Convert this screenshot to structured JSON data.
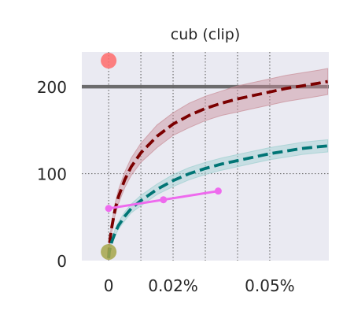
{
  "chart_data": {
    "type": "line",
    "title": "cub (clip)",
    "xlabel": "",
    "ylabel": "",
    "xlim": [
      -8.33e-05,
      0.0006833
    ],
    "ylim": [
      0,
      240
    ],
    "x_ticks": [
      {
        "value": 0,
        "label": "0"
      },
      {
        "value": 0.0002,
        "label": "0.02%"
      },
      {
        "value": 0.0005,
        "label": "0.05%"
      }
    ],
    "x_grid": [
      0,
      0.0001,
      0.0002,
      0.0003,
      0.0004,
      0.0005
    ],
    "y_ticks": [
      {
        "value": 0,
        "label": "0"
      },
      {
        "value": 100,
        "label": "100"
      },
      {
        "value": 200,
        "label": "200"
      }
    ],
    "y_grid": [
      100
    ],
    "grid": true,
    "legend": "none",
    "reference_line": {
      "y": 200,
      "color": "#5f5f5f"
    },
    "series": [
      {
        "style": "dashed",
        "color": "#7b0000",
        "band_color": "#c98f98",
        "x": [
          0,
          2e-06,
          5e-06,
          1e-05,
          2e-05,
          3e-05,
          5e-05,
          7e-05,
          0.0001,
          0.00015,
          0.0002,
          0.00025,
          0.0003,
          0.00035,
          0.0004,
          0.00045,
          0.0005,
          0.00055,
          0.0006,
          0.00065,
          0.00068
        ],
        "y": [
          3,
          16,
          27,
          39,
          59,
          73,
          93,
          108,
          124,
          143,
          157,
          167,
          175,
          181,
          186,
          190,
          194,
          198,
          201,
          204,
          206
        ],
        "band": [
          2,
          3,
          4,
          5,
          7,
          8,
          9,
          10,
          11,
          13,
          13,
          14,
          14,
          14,
          15,
          15,
          15,
          15,
          15,
          15,
          15
        ]
      },
      {
        "style": "dashed",
        "color": "#007575",
        "band_color": "#9ed0d0",
        "x": [
          0,
          2e-06,
          5e-06,
          1e-05,
          2e-05,
          3e-05,
          5e-05,
          7e-05,
          0.0001,
          0.00015,
          0.0002,
          0.00025,
          0.0003,
          0.00035,
          0.0004,
          0.00045,
          0.0005,
          0.00055,
          0.0006,
          0.00065,
          0.00068
        ],
        "y": [
          3,
          10,
          15,
          22,
          32,
          40,
          51,
          60,
          69,
          82,
          92,
          100,
          106,
          111,
          115,
          119,
          123,
          126,
          129,
          131,
          132
        ],
        "band": [
          1,
          2,
          2,
          3,
          4,
          4,
          5,
          5,
          6,
          6,
          7,
          7,
          7,
          7,
          7,
          7,
          7,
          7,
          7,
          7,
          7
        ]
      },
      {
        "style": "solid-markers",
        "color": "#ee6aee",
        "x": [
          0,
          0.00017,
          0.00034
        ],
        "y": [
          60,
          70,
          80
        ]
      }
    ],
    "markers": [
      {
        "x": 0,
        "y": 230,
        "color": "#ff6b6b"
      },
      {
        "x": 0,
        "y": 10,
        "color": "#a6a64a"
      }
    ]
  }
}
